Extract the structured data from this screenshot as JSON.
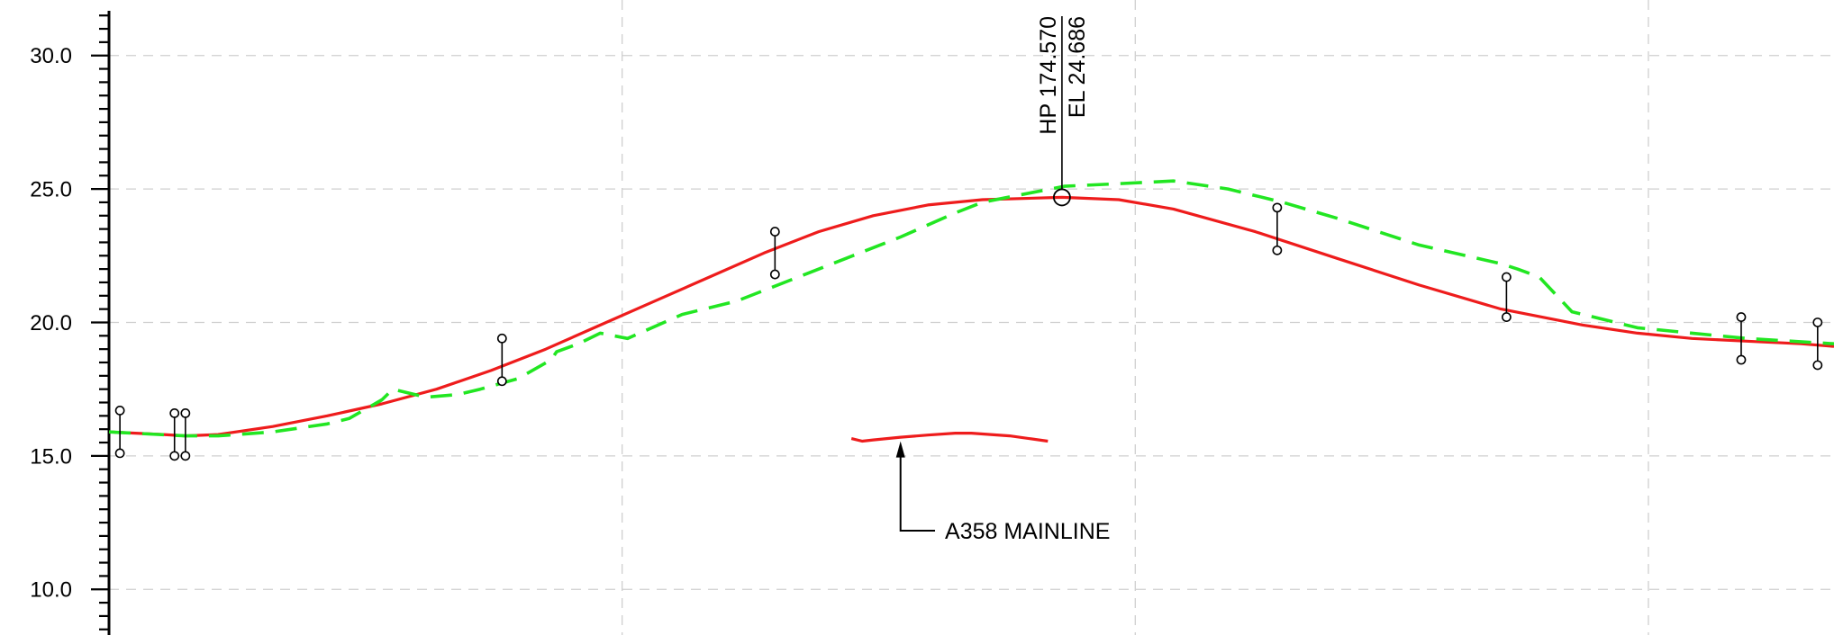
{
  "chart_data": {
    "type": "line",
    "title": "",
    "xlabel": "",
    "ylabel": "",
    "ylim": [
      8.0,
      31.5
    ],
    "xlim": [
      0,
      316
    ],
    "grid": true,
    "y_ticks": [
      "10.0",
      "15.0",
      "20.0",
      "25.0",
      "30.0"
    ],
    "y_tick_values": [
      10,
      15,
      20,
      25,
      30
    ],
    "colors": {
      "design": "#ee1c1c",
      "existing": "#22e622",
      "annotation": "#000000"
    },
    "series": [
      {
        "key": "design",
        "style": "solid",
        "x": [
          0,
          10,
          14,
          20,
          30,
          40,
          50,
          60,
          70,
          80,
          90,
          100,
          110,
          120,
          130,
          140,
          150,
          160,
          174.57,
          185,
          195,
          210,
          225,
          240,
          255,
          270,
          280,
          290,
          300,
          310,
          316
        ],
        "y": [
          15.9,
          15.8,
          15.75,
          15.8,
          16.1,
          16.5,
          16.95,
          17.5,
          18.2,
          19.0,
          19.9,
          20.8,
          21.7,
          22.6,
          23.4,
          24.0,
          24.4,
          24.6,
          24.686,
          24.6,
          24.25,
          23.4,
          22.4,
          21.4,
          20.5,
          19.9,
          19.6,
          19.4,
          19.3,
          19.2,
          19.1
        ]
      },
      {
        "key": "existing",
        "style": "dashed",
        "x": [
          0,
          14,
          20,
          30,
          40,
          44,
          50,
          52,
          58,
          64,
          68,
          75,
          81,
          82,
          86,
          90,
          95,
          105,
          115,
          125,
          135,
          145,
          155,
          160,
          175,
          185,
          195,
          205,
          215,
          225,
          240,
          255,
          258,
          262,
          268,
          280,
          290,
          300,
          316
        ],
        "y": [
          15.9,
          15.75,
          15.75,
          15.9,
          16.2,
          16.4,
          17.1,
          17.5,
          17.2,
          17.3,
          17.5,
          17.9,
          18.6,
          18.9,
          19.2,
          19.6,
          19.4,
          20.3,
          20.8,
          21.6,
          22.4,
          23.2,
          24.1,
          24.5,
          25.1,
          25.2,
          25.3,
          25.0,
          24.5,
          23.9,
          22.9,
          22.2,
          22.0,
          21.7,
          20.4,
          19.8,
          19.6,
          19.4,
          19.2
        ]
      }
    ],
    "markers": [
      {
        "x": 2,
        "y_top": 16.7,
        "y_bottom": 15.1
      },
      {
        "x": 12,
        "y_top": 16.6,
        "y_bottom": 15.0
      },
      {
        "x": 14,
        "y_top": 16.6,
        "y_bottom": 15.0
      },
      {
        "x": 72,
        "y_top": 19.4,
        "y_bottom": 17.8
      },
      {
        "x": 122,
        "y_top": 23.4,
        "y_bottom": 21.8
      },
      {
        "x": 214,
        "y_top": 24.3,
        "y_bottom": 22.7
      },
      {
        "x": 256,
        "y_top": 21.7,
        "y_bottom": 20.2
      },
      {
        "x": 299,
        "y_top": 20.2,
        "y_bottom": 18.6
      },
      {
        "x": 313,
        "y_top": 20.0,
        "y_bottom": 18.4
      }
    ],
    "high_point": {
      "x": 174.57,
      "y": 24.686,
      "label_hp": "HP 174.570",
      "label_el": "EL 24.686"
    },
    "inset_line": {
      "x": [
        136,
        138,
        140,
        145,
        150,
        155,
        158,
        165,
        172,
        163,
        165
      ],
      "y": [
        15.65,
        15.55,
        15.6,
        15.7,
        15.78,
        15.85,
        15.85,
        15.75,
        15.55,
        15.6,
        15.6
      ]
    },
    "callout": {
      "label": "A358 MAINLINE",
      "arrow_tip": {
        "x": 145,
        "y": 15.65
      },
      "elbow": {
        "x": 145,
        "y": 12.2
      },
      "end": {
        "x": 150,
        "y": 12.2
      }
    }
  }
}
